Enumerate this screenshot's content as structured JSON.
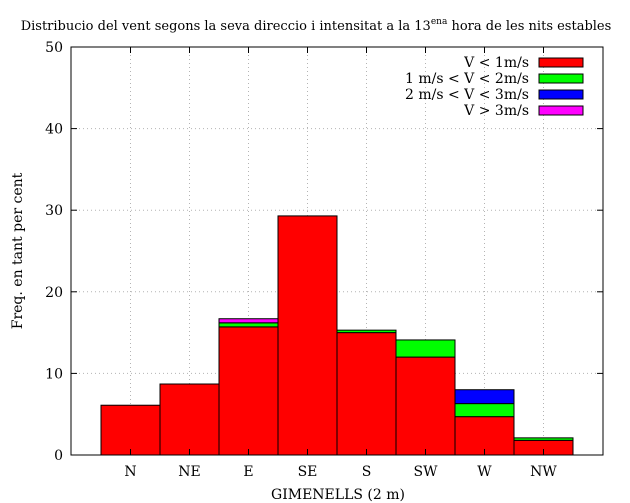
{
  "chart_data": {
    "type": "bar",
    "stacked": true,
    "title_main": "Distribucio del vent segons la seva direccio i intensitat a la 13",
    "title_sup": "ena",
    "title_tail": " hora de les nits estables",
    "xlabel": "GIMENELLS (2 m)",
    "ylabel": "Freq. en tant per cent",
    "ylim": [
      0,
      50
    ],
    "yticks": [
      0,
      10,
      20,
      30,
      40,
      50
    ],
    "grid": true,
    "legend_position": "top-right",
    "categories": [
      "N",
      "NE",
      "E",
      "SE",
      "S",
      "SW",
      "W",
      "NW"
    ],
    "series": [
      {
        "name": "V < 1m/s",
        "color": "#ff0000",
        "values": [
          6.1,
          8.7,
          15.7,
          29.3,
          15.0,
          12.0,
          4.7,
          1.8
        ]
      },
      {
        "name": "1 m/s < V < 2m/s",
        "color": "#00ff00",
        "values": [
          0,
          0,
          0.5,
          0,
          0.3,
          2.1,
          1.6,
          0.3
        ]
      },
      {
        "name": "2 m/s < V < 3m/s",
        "color": "#0000ff",
        "values": [
          0,
          0,
          0,
          0,
          0,
          0,
          1.7,
          0
        ]
      },
      {
        "name": "V > 3m/s",
        "color": "#ff00ff",
        "values": [
          0,
          0,
          0.5,
          0,
          0,
          0,
          0,
          0
        ]
      }
    ]
  }
}
